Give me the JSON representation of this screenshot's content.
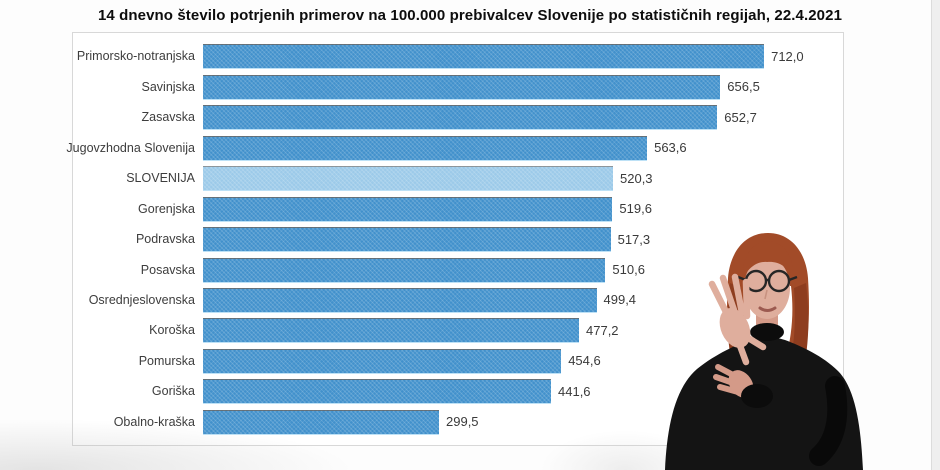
{
  "title": "14 dnevno število potrjenih primerov na 100.000 prebivalcev Slovenije po statističnih regijah, 22.4.2021",
  "chart_data": {
    "type": "bar",
    "orientation": "horizontal",
    "title": "14 dnevno število potrjenih primerov na 100.000 prebivalcev Slovenije po statističnih regijah, 22.4.2021",
    "xlabel": "",
    "ylabel": "",
    "grid": false,
    "xlim": [
      0,
      815
    ],
    "categories": [
      "Primorsko-notranjska",
      "Savinjska",
      "Zasavska",
      "Jugovzhodna Slovenija",
      "SLOVENIJA",
      "Gorenjska",
      "Podravska",
      "Posavska",
      "Osrednjeslovenska",
      "Koroška",
      "Pomurska",
      "Goriška",
      "Obalno-kraška"
    ],
    "values": [
      712.0,
      656.5,
      652.7,
      563.6,
      520.3,
      519.6,
      517.3,
      510.6,
      499.4,
      477.2,
      454.6,
      441.6,
      299.5
    ],
    "value_labels": [
      "712,0",
      "656,5",
      "652,7",
      "563,6",
      "520,3",
      "519,6",
      "517,3",
      "510,6",
      "499,4",
      "477,2",
      "454,6",
      "441,6",
      "299,5"
    ],
    "highlight_index": 4,
    "highlight_category": "SLOVENIJA",
    "bar_color": "#4291cc",
    "highlight_bar_color": "#9ccae9",
    "value_label_color": "#3a3a3a",
    "category_label_color": "#3d3d3d",
    "plot_border_color": "#d8d8d8"
  },
  "interpreter": {
    "role": "sign-language-interpreter",
    "hair_color": "#a24b28",
    "hair_shadow_color": "#8e3d1f",
    "skin_color": "#dfae9d",
    "skin_shadow_color": "#d49a88",
    "clothing_color": "#141414",
    "collar_color": "#0c0c0c",
    "glasses_color": "#262626",
    "mouth_color": "#9c5a50"
  }
}
